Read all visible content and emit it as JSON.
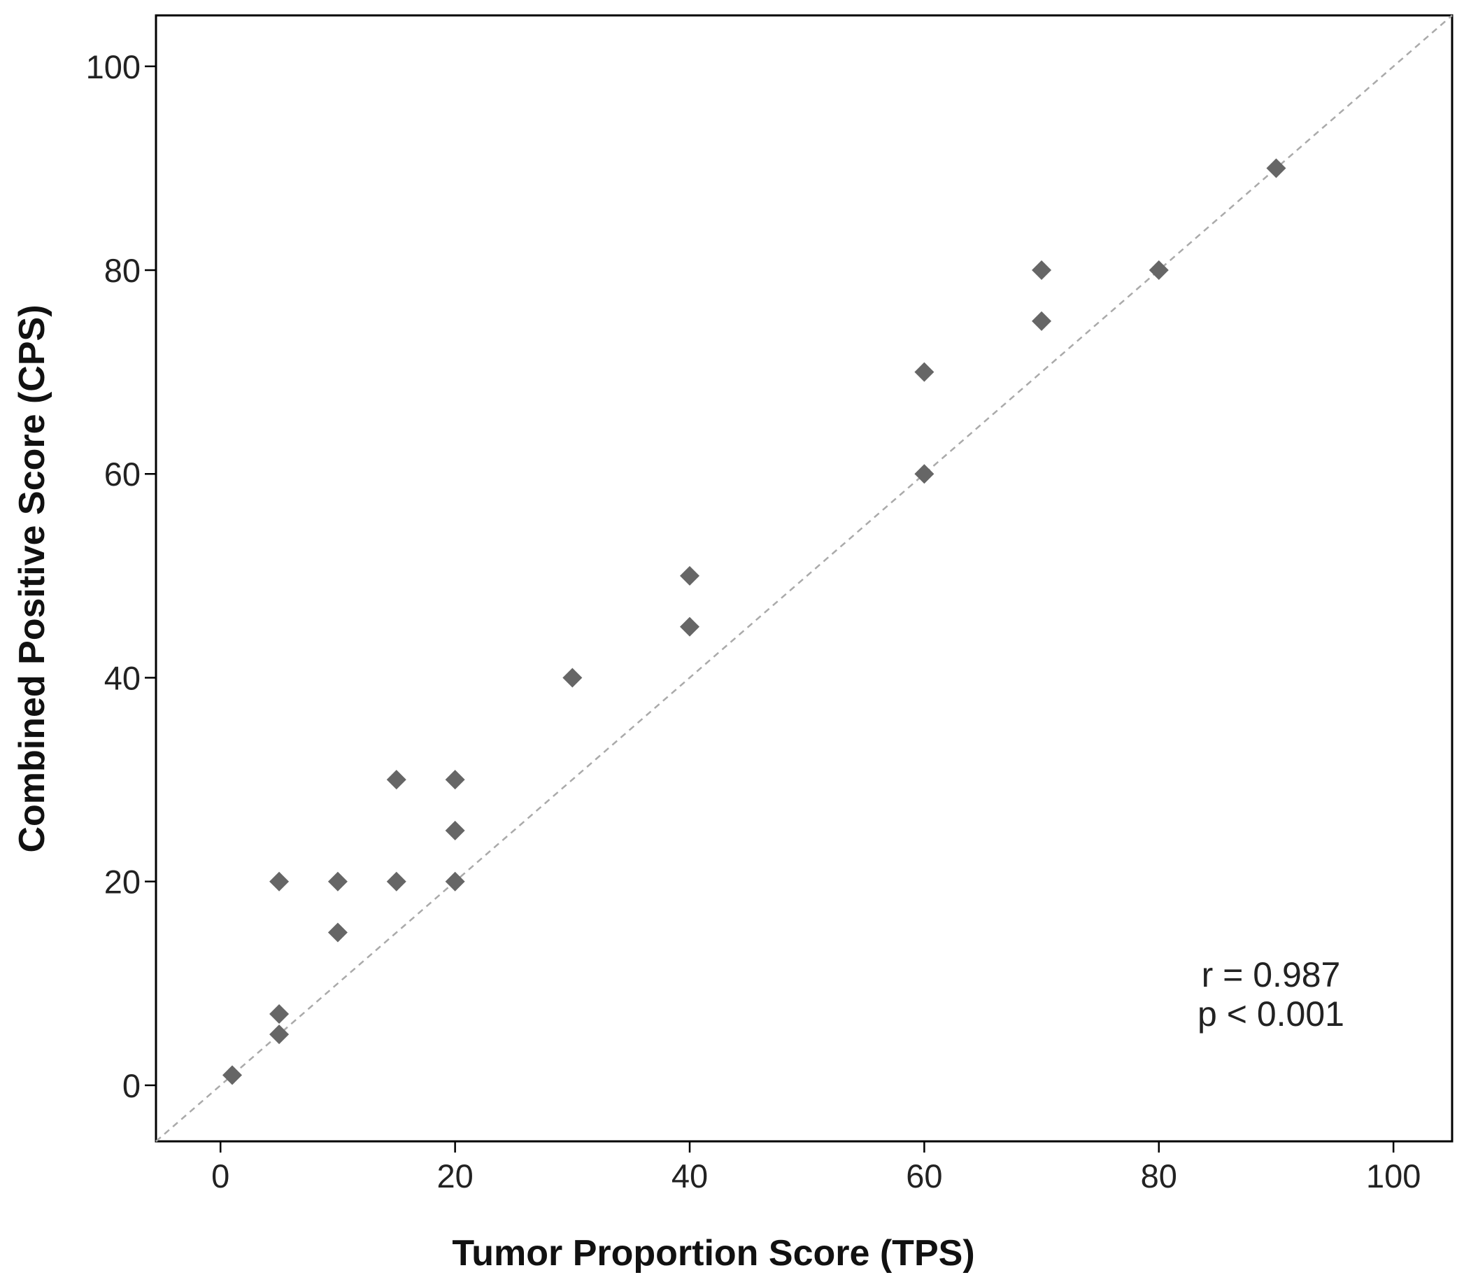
{
  "chart_data": {
    "type": "scatter",
    "title": "",
    "xlabel": "Tumor Proportion Score (TPS)",
    "ylabel": "Combined Positive Score (CPS)",
    "xlim": [
      -5.5,
      105
    ],
    "ylim": [
      -5.5,
      105
    ],
    "x_ticks": [
      0,
      20,
      40,
      60,
      80,
      100
    ],
    "y_ticks": [
      0,
      20,
      40,
      60,
      80,
      100
    ],
    "x_tick_labels": [
      "0",
      "20",
      "40",
      "60",
      "80",
      "100"
    ],
    "y_tick_labels": [
      "0",
      "20",
      "40",
      "60",
      "80",
      "100"
    ],
    "grid": false,
    "marker": "diamond",
    "marker_color": "#666666",
    "reference_line": {
      "style": "dashed",
      "color": "#aaaaaa",
      "slope": 1,
      "intercept": 0
    },
    "points": [
      {
        "x": 1,
        "y": 1
      },
      {
        "x": 5,
        "y": 5
      },
      {
        "x": 5,
        "y": 7
      },
      {
        "x": 5,
        "y": 20
      },
      {
        "x": 10,
        "y": 15
      },
      {
        "x": 10,
        "y": 20
      },
      {
        "x": 15,
        "y": 20
      },
      {
        "x": 15,
        "y": 30
      },
      {
        "x": 20,
        "y": 20
      },
      {
        "x": 20,
        "y": 25
      },
      {
        "x": 20,
        "y": 30
      },
      {
        "x": 30,
        "y": 40
      },
      {
        "x": 40,
        "y": 45
      },
      {
        "x": 40,
        "y": 50
      },
      {
        "x": 60,
        "y": 60
      },
      {
        "x": 60,
        "y": 70
      },
      {
        "x": 70,
        "y": 75
      },
      {
        "x": 70,
        "y": 80
      },
      {
        "x": 80,
        "y": 80
      },
      {
        "x": 90,
        "y": 90
      }
    ],
    "annotation": {
      "r_text": "r = 0.987",
      "p_text": "p < 0.001"
    }
  }
}
